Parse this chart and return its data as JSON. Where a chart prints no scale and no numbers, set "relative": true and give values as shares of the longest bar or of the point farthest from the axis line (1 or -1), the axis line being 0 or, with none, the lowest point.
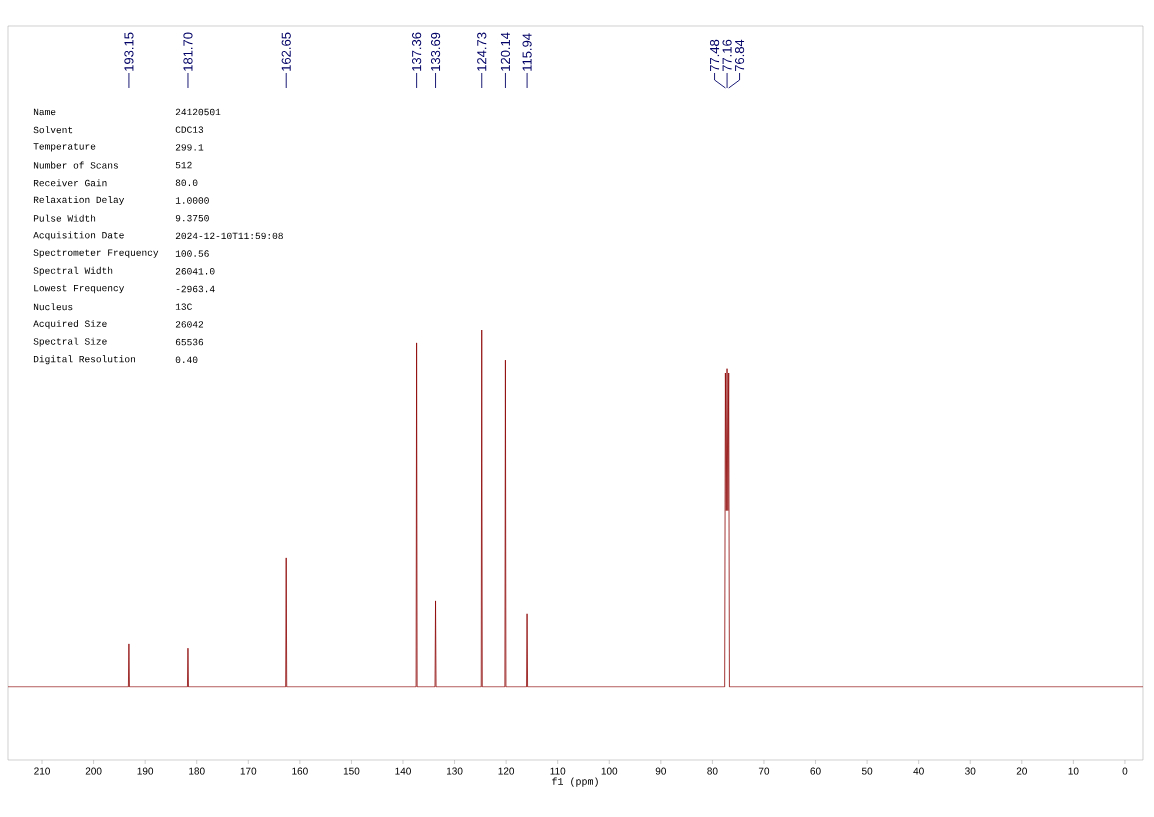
{
  "chart_data": {
    "type": "line",
    "relative": true,
    "xlabel": "f1 (ppm)",
    "tick_labels": "x",
    "xlim": [
      216.6,
      -3.5
    ],
    "xticks": [
      210,
      200,
      190,
      180,
      170,
      160,
      150,
      140,
      130,
      120,
      110,
      100,
      90,
      80,
      70,
      60,
      50,
      40,
      30,
      20,
      10,
      0
    ],
    "x": [
      216.6,
      193.25,
      193.15,
      193.05,
      181.8,
      181.7,
      181.6,
      162.75,
      162.65,
      162.55,
      137.46,
      137.36,
      137.26,
      133.79,
      133.69,
      133.59,
      124.83,
      124.73,
      124.63,
      120.24,
      120.14,
      120.04,
      116.04,
      115.94,
      115.84,
      77.62,
      77.48,
      77.32,
      77.16,
      77.0,
      76.84,
      76.7,
      -3.5
    ],
    "series": [
      {
        "color": "#8b0000",
        "values": [
          0.17,
          0.17,
          0.27,
          0.17,
          0.17,
          0.26,
          0.17,
          0.17,
          0.47,
          0.17,
          0.17,
          0.97,
          0.17,
          0.17,
          0.37,
          0.17,
          0.17,
          1.0,
          0.17,
          0.17,
          0.93,
          0.17,
          0.17,
          0.34,
          0.17,
          0.17,
          0.9,
          0.58,
          0.91,
          0.58,
          0.9,
          0.17,
          0.17
        ]
      }
    ],
    "annotations": [
      {
        "text": "193.15",
        "x": 193.15
      },
      {
        "text": "181.70",
        "x": 181.7
      },
      {
        "text": "162.65",
        "x": 162.65
      },
      {
        "text": "137.36",
        "x": 137.36
      },
      {
        "text": "133.69",
        "x": 133.69
      },
      {
        "text": "124.73",
        "x": 124.73
      },
      {
        "text": "120.14",
        "x": 120.14
      },
      {
        "text": "115.94",
        "x": 115.94
      },
      {
        "text": "77.48",
        "x": 77.48
      },
      {
        "text": "77.16",
        "x": 77.16
      },
      {
        "text": "76.84",
        "x": 76.84
      },
      "Name",
      "Solvent",
      "Temperature",
      "Number of Scans",
      "Receiver Gain",
      "Relaxation Delay",
      "Pulse Width",
      "Acquisition Date",
      "Spectrometer Frequency",
      "Spectral Width",
      "Lowest Frequency",
      "Nucleus",
      "Acquired Size",
      "Spectral Size",
      "Digital Resolution",
      "24120501",
      "CDC13",
      "299.1",
      "512",
      "80.0",
      "1.0000",
      "9.3750",
      "2024-12-10T11:59:08",
      "100.56",
      "26041.0",
      "-2963.4",
      "13C",
      "26042",
      "65536",
      "0.40"
    ]
  }
}
